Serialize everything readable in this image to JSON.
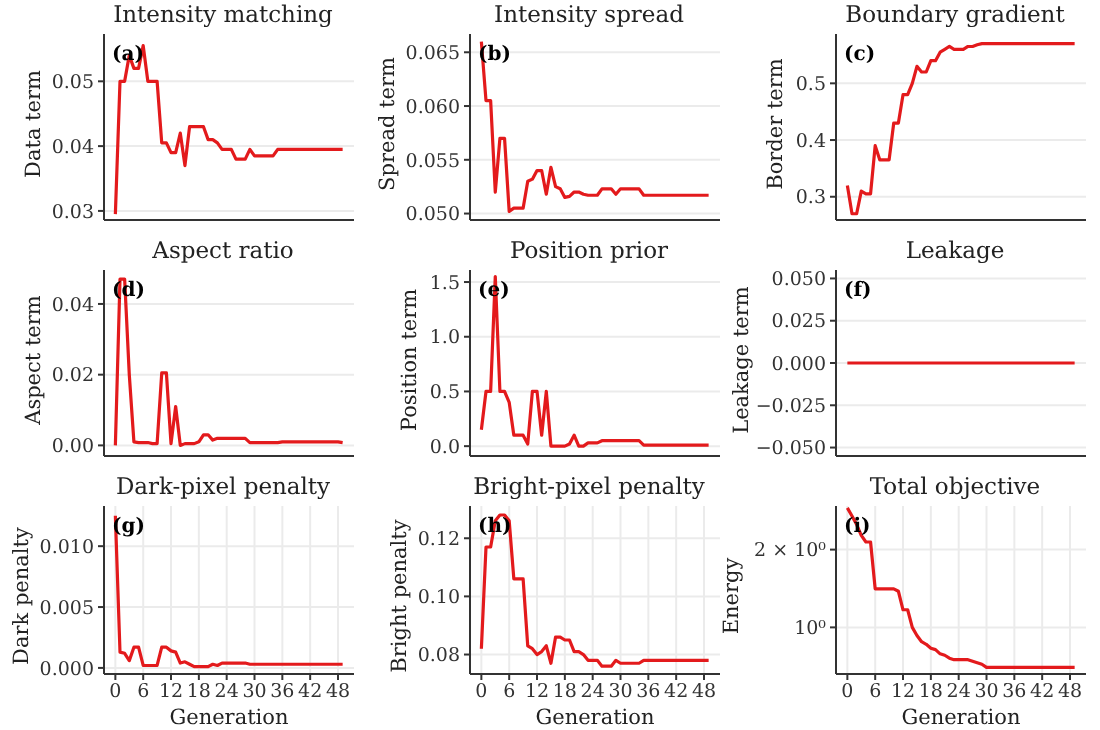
{
  "chart_data": [
    {
      "type": "line",
      "title": "Intensity matching",
      "ylabel": "Data term",
      "annotations": [
        "(a)"
      ],
      "tick_labels": "y",
      "grid": true,
      "xlim": [
        -2.45,
        51.45
      ],
      "xticks": [
        0,
        6,
        12,
        18,
        24,
        30,
        36,
        42,
        48
      ],
      "ylim": [
        0.0286,
        0.0573
      ],
      "yticks": [
        0.03,
        0.04,
        0.05
      ],
      "x": [
        0,
        1,
        2,
        3,
        4,
        5,
        6,
        7,
        8,
        9,
        10,
        11,
        12,
        13,
        14,
        15,
        16,
        17,
        18,
        19,
        20,
        21,
        22,
        23,
        24,
        25,
        26,
        27,
        28,
        29,
        30,
        31,
        32,
        33,
        34,
        35,
        36,
        37,
        38,
        39,
        40,
        41,
        42,
        43,
        44,
        45,
        46,
        47,
        48,
        49
      ],
      "series": [
        {
          "color": "#e31a1c",
          "values": [
            0.0295,
            0.05,
            0.05,
            0.054,
            0.052,
            0.052,
            0.0555,
            0.05,
            0.05,
            0.05,
            0.0405,
            0.0405,
            0.039,
            0.039,
            0.042,
            0.037,
            0.043,
            0.043,
            0.043,
            0.043,
            0.041,
            0.041,
            0.0405,
            0.0395,
            0.0395,
            0.0395,
            0.038,
            0.038,
            0.038,
            0.0395,
            0.0385,
            0.0385,
            0.0385,
            0.0385,
            0.0385,
            0.0395,
            0.0395,
            0.0395,
            0.0395,
            0.0395,
            0.0395,
            0.0395,
            0.0395,
            0.0395,
            0.0395,
            0.0395,
            0.0395,
            0.0395,
            0.0395,
            0.0395
          ]
        }
      ]
    },
    {
      "type": "line",
      "title": "Intensity spread",
      "ylabel": "Spread term",
      "annotations": [
        "(b)"
      ],
      "tick_labels": "y",
      "grid": true,
      "xlim": [
        -2.45,
        51.45
      ],
      "xticks": [
        0,
        6,
        12,
        18,
        24,
        30,
        36,
        42,
        48
      ],
      "ylim": [
        0.0494,
        0.0667
      ],
      "yticks": [
        {
          "value": 0.05,
          "label": "0.050"
        },
        0.055,
        {
          "value": 0.06,
          "label": "0.060"
        },
        0.065
      ],
      "x": [
        0,
        1,
        2,
        3,
        4,
        5,
        6,
        7,
        8,
        9,
        10,
        11,
        12,
        13,
        14,
        15,
        16,
        17,
        18,
        19,
        20,
        21,
        22,
        23,
        24,
        25,
        26,
        27,
        28,
        29,
        30,
        31,
        32,
        33,
        34,
        35,
        36,
        37,
        38,
        39,
        40,
        41,
        42,
        43,
        44,
        45,
        46,
        47,
        48,
        49
      ],
      "series": [
        {
          "color": "#e31a1c",
          "values": [
            0.066,
            0.0605,
            0.0605,
            0.052,
            0.057,
            0.057,
            0.0502,
            0.0505,
            0.0505,
            0.0505,
            0.053,
            0.0532,
            0.054,
            0.054,
            0.0518,
            0.0543,
            0.0525,
            0.0523,
            0.0515,
            0.0516,
            0.052,
            0.052,
            0.0518,
            0.0517,
            0.0517,
            0.0517,
            0.0523,
            0.0523,
            0.0523,
            0.0518,
            0.0523,
            0.0523,
            0.0523,
            0.0523,
            0.0523,
            0.0517,
            0.0517,
            0.0517,
            0.0517,
            0.0517,
            0.0517,
            0.0517,
            0.0517,
            0.0517,
            0.0517,
            0.0517,
            0.0517,
            0.0517,
            0.0517,
            0.0517
          ]
        }
      ]
    },
    {
      "type": "line",
      "title": "Boundary gradient",
      "ylabel": "Border term",
      "annotations": [
        "(c)"
      ],
      "tick_labels": "y",
      "grid": true,
      "xlim": [
        -2.45,
        51.45
      ],
      "xticks": [
        0,
        6,
        12,
        18,
        24,
        30,
        36,
        42,
        48
      ],
      "ylim": [
        0.259,
        0.587
      ],
      "yticks": [
        0.3,
        0.4,
        0.5
      ],
      "x": [
        0,
        1,
        2,
        3,
        4,
        5,
        6,
        7,
        8,
        9,
        10,
        11,
        12,
        13,
        14,
        15,
        16,
        17,
        18,
        19,
        20,
        21,
        22,
        23,
        24,
        25,
        26,
        27,
        28,
        29,
        30,
        31,
        32,
        33,
        34,
        35,
        36,
        37,
        38,
        39,
        40,
        41,
        42,
        43,
        44,
        45,
        46,
        47,
        48,
        49
      ],
      "series": [
        {
          "color": "#e31a1c",
          "values": [
            0.32,
            0.27,
            0.27,
            0.31,
            0.305,
            0.305,
            0.39,
            0.365,
            0.365,
            0.365,
            0.43,
            0.43,
            0.48,
            0.48,
            0.5,
            0.53,
            0.52,
            0.52,
            0.54,
            0.54,
            0.555,
            0.56,
            0.565,
            0.56,
            0.56,
            0.56,
            0.565,
            0.565,
            0.568,
            0.57,
            0.57,
            0.57,
            0.57,
            0.57,
            0.57,
            0.57,
            0.57,
            0.57,
            0.57,
            0.57,
            0.57,
            0.57,
            0.57,
            0.57,
            0.57,
            0.57,
            0.57,
            0.57,
            0.57,
            0.57
          ]
        }
      ]
    },
    {
      "type": "line",
      "title": "Aspect ratio",
      "ylabel": "Aspect term",
      "annotations": [
        "(d)"
      ],
      "tick_labels": "y",
      "grid": true,
      "xlim": [
        -2.45,
        51.45
      ],
      "xticks": [
        0,
        6,
        12,
        18,
        24,
        30,
        36,
        42,
        48
      ],
      "ylim": [
        -0.003,
        0.0496
      ],
      "yticks": [
        {
          "value": 0,
          "label": "0.00"
        },
        0.02,
        0.04
      ],
      "x": [
        0,
        1,
        2,
        3,
        4,
        5,
        6,
        7,
        8,
        9,
        10,
        11,
        12,
        13,
        14,
        15,
        16,
        17,
        18,
        19,
        20,
        21,
        22,
        23,
        24,
        25,
        26,
        27,
        28,
        29,
        30,
        31,
        32,
        33,
        34,
        35,
        36,
        37,
        38,
        39,
        40,
        41,
        42,
        43,
        44,
        45,
        46,
        47,
        48,
        49
      ],
      "series": [
        {
          "color": "#e31a1c",
          "values": [
            0,
            0.047,
            0.047,
            0.02,
            0.001,
            0.0008,
            0.0008,
            0.0008,
            0.0005,
            0.0005,
            0.0205,
            0.0205,
            0.0005,
            0.011,
            0,
            0.0005,
            0.0005,
            0.0005,
            0.001,
            0.003,
            0.003,
            0.0015,
            0.002,
            0.002,
            0.002,
            0.002,
            0.002,
            0.002,
            0.002,
            0.0008,
            0.0008,
            0.0008,
            0.0008,
            0.0008,
            0.0008,
            0.0008,
            0.001,
            0.001,
            0.001,
            0.001,
            0.001,
            0.001,
            0.001,
            0.001,
            0.001,
            0.001,
            0.001,
            0.001,
            0.001,
            0.0008
          ]
        }
      ]
    },
    {
      "type": "line",
      "title": "Position prior",
      "ylabel": "Position term",
      "annotations": [
        "(e)"
      ],
      "tick_labels": "y",
      "grid": true,
      "xlim": [
        -2.45,
        51.45
      ],
      "xticks": [
        0,
        6,
        12,
        18,
        24,
        30,
        36,
        42,
        48
      ],
      "ylim": [
        -0.09,
        1.61
      ],
      "yticks": [
        {
          "value": 0,
          "label": "0.0"
        },
        0.5,
        {
          "value": 1,
          "label": "1.0"
        },
        1.5
      ],
      "x": [
        0,
        1,
        2,
        3,
        4,
        5,
        6,
        7,
        8,
        9,
        10,
        11,
        12,
        13,
        14,
        15,
        16,
        17,
        18,
        19,
        20,
        21,
        22,
        23,
        24,
        25,
        26,
        27,
        28,
        29,
        30,
        31,
        32,
        33,
        34,
        35,
        36,
        37,
        38,
        39,
        40,
        41,
        42,
        43,
        44,
        45,
        46,
        47,
        48,
        49
      ],
      "series": [
        {
          "color": "#e31a1c",
          "values": [
            0.15,
            0.5,
            0.5,
            1.55,
            0.5,
            0.5,
            0.4,
            0.1,
            0.1,
            0.1,
            0.02,
            0.5,
            0.5,
            0.1,
            0.5,
            0,
            0,
            0,
            0,
            0.02,
            0.1,
            0,
            0,
            0.03,
            0.03,
            0.03,
            0.05,
            0.05,
            0.05,
            0.05,
            0.05,
            0.05,
            0.05,
            0.05,
            0.05,
            0.01,
            0.01,
            0.01,
            0.01,
            0.01,
            0.01,
            0.01,
            0.01,
            0.01,
            0.01,
            0.01,
            0.01,
            0.01,
            0.01,
            0.01
          ]
        }
      ]
    },
    {
      "type": "line",
      "title": "Leakage",
      "ylabel": "Leakage term",
      "annotations": [
        "(f)"
      ],
      "tick_labels": "y",
      "grid": true,
      "xlim": [
        -2.45,
        51.45
      ],
      "xticks": [
        0,
        6,
        12,
        18,
        24,
        30,
        36,
        42,
        48
      ],
      "ylim": [
        -0.055,
        0.055
      ],
      "yticks": [
        {
          "value": -0.05,
          "label": "−0.050"
        },
        {
          "value": -0.025,
          "label": "−0.025"
        },
        {
          "value": 0,
          "label": "0.000"
        },
        {
          "value": 0.025,
          "label": "0.025"
        },
        {
          "value": 0.05,
          "label": "0.050"
        }
      ],
      "x": [
        0,
        1,
        2,
        3,
        4,
        5,
        6,
        7,
        8,
        9,
        10,
        11,
        12,
        13,
        14,
        15,
        16,
        17,
        18,
        19,
        20,
        21,
        22,
        23,
        24,
        25,
        26,
        27,
        28,
        29,
        30,
        31,
        32,
        33,
        34,
        35,
        36,
        37,
        38,
        39,
        40,
        41,
        42,
        43,
        44,
        45,
        46,
        47,
        48,
        49
      ],
      "series": [
        {
          "color": "#e31a1c",
          "values": [
            0,
            0,
            0,
            0,
            0,
            0,
            0,
            0,
            0,
            0,
            0,
            0,
            0,
            0,
            0,
            0,
            0,
            0,
            0,
            0,
            0,
            0,
            0,
            0,
            0,
            0,
            0,
            0,
            0,
            0,
            0,
            0,
            0,
            0,
            0,
            0,
            0,
            0,
            0,
            0,
            0,
            0,
            0,
            0,
            0,
            0,
            0,
            0,
            0,
            0
          ]
        }
      ]
    },
    {
      "type": "line",
      "title": "Dark-pixel penalty",
      "xlabel": "Generation",
      "ylabel": "Dark penalty",
      "annotations": [
        "(g)"
      ],
      "grid": true,
      "xlim": [
        -2.45,
        51.45
      ],
      "xticks": [
        0,
        6,
        12,
        18,
        24,
        30,
        36,
        42,
        48
      ],
      "ylim": [
        -0.0005,
        0.0133
      ],
      "yticks": [
        {
          "value": 0,
          "label": "0.000"
        },
        0.005,
        {
          "value": 0.01,
          "label": "0.010"
        }
      ],
      "x": [
        0,
        1,
        2,
        3,
        4,
        5,
        6,
        7,
        8,
        9,
        10,
        11,
        12,
        13,
        14,
        15,
        16,
        17,
        18,
        19,
        20,
        21,
        22,
        23,
        24,
        25,
        26,
        27,
        28,
        29,
        30,
        31,
        32,
        33,
        34,
        35,
        36,
        37,
        38,
        39,
        40,
        41,
        42,
        43,
        44,
        45,
        46,
        47,
        48,
        49
      ],
      "series": [
        {
          "color": "#e31a1c",
          "values": [
            0.0125,
            0.0013,
            0.0012,
            0.0006,
            0.0017,
            0.0017,
            0.0002,
            0.0002,
            0.0002,
            0.0002,
            0.0017,
            0.0017,
            0.0014,
            0.0013,
            0.0004,
            0.0005,
            0.0003,
            0.0001,
            0.0001,
            0.0001,
            0.0001,
            0.0003,
            0.0002,
            0.0004,
            0.0004,
            0.0004,
            0.0004,
            0.0004,
            0.0004,
            0.0003,
            0.0003,
            0.0003,
            0.0003,
            0.0003,
            0.0003,
            0.0003,
            0.0003,
            0.0003,
            0.0003,
            0.0003,
            0.0003,
            0.0003,
            0.0003,
            0.0003,
            0.0003,
            0.0003,
            0.0003,
            0.0003,
            0.0003,
            0.0003
          ]
        }
      ]
    },
    {
      "type": "line",
      "title": "Bright-pixel penalty",
      "xlabel": "Generation",
      "ylabel": "Bright penalty",
      "annotations": [
        "(h)"
      ],
      "grid": true,
      "xlim": [
        -2.45,
        51.45
      ],
      "xticks": [
        0,
        6,
        12,
        18,
        24,
        30,
        36,
        42,
        48
      ],
      "ylim": [
        0.0733,
        0.1311
      ],
      "yticks": [
        0.08,
        {
          "value": 0.1,
          "label": "0.10"
        },
        0.12
      ],
      "x": [
        0,
        1,
        2,
        3,
        4,
        5,
        6,
        7,
        8,
        9,
        10,
        11,
        12,
        13,
        14,
        15,
        16,
        17,
        18,
        19,
        20,
        21,
        22,
        23,
        24,
        25,
        26,
        27,
        28,
        29,
        30,
        31,
        32,
        33,
        34,
        35,
        36,
        37,
        38,
        39,
        40,
        41,
        42,
        43,
        44,
        45,
        46,
        47,
        48,
        49
      ],
      "series": [
        {
          "color": "#e31a1c",
          "values": [
            0.082,
            0.117,
            0.117,
            0.126,
            0.128,
            0.128,
            0.126,
            0.106,
            0.106,
            0.106,
            0.083,
            0.082,
            0.08,
            0.081,
            0.083,
            0.077,
            0.086,
            0.086,
            0.085,
            0.085,
            0.081,
            0.081,
            0.08,
            0.078,
            0.078,
            0.078,
            0.076,
            0.076,
            0.076,
            0.078,
            0.077,
            0.077,
            0.077,
            0.077,
            0.077,
            0.078,
            0.078,
            0.078,
            0.078,
            0.078,
            0.078,
            0.078,
            0.078,
            0.078,
            0.078,
            0.078,
            0.078,
            0.078,
            0.078,
            0.078
          ]
        }
      ]
    },
    {
      "type": "line",
      "title": "Total objective",
      "xlabel": "Generation",
      "ylabel": "Energy",
      "annotations": [
        "(i)"
      ],
      "grid": true,
      "log": true,
      "xlim": [
        -2.45,
        51.45
      ],
      "xticks": [
        0,
        6,
        12,
        18,
        24,
        30,
        36,
        42,
        48
      ],
      "ylim": [
        0.66,
        2.95
      ],
      "yticks": [
        {
          "value": 1,
          "label": "10⁰"
        },
        {
          "value": 2,
          "label": "2 × 10⁰"
        }
      ],
      "x": [
        0,
        1,
        2,
        3,
        4,
        5,
        6,
        7,
        8,
        9,
        10,
        11,
        12,
        13,
        14,
        15,
        16,
        17,
        18,
        19,
        20,
        21,
        22,
        23,
        24,
        25,
        26,
        27,
        28,
        29,
        30,
        31,
        32,
        33,
        34,
        35,
        36,
        37,
        38,
        39,
        40,
        41,
        42,
        43,
        44,
        45,
        46,
        47,
        48,
        49
      ],
      "series": [
        {
          "color": "#e31a1c",
          "values": [
            2.9,
            2.7,
            2.5,
            2.27,
            2.14,
            2.14,
            1.41,
            1.41,
            1.41,
            1.41,
            1.41,
            1.38,
            1.17,
            1.17,
            1.0,
            0.93,
            0.88,
            0.86,
            0.83,
            0.82,
            0.79,
            0.78,
            0.76,
            0.75,
            0.75,
            0.75,
            0.75,
            0.74,
            0.73,
            0.72,
            0.7,
            0.7,
            0.7,
            0.7,
            0.7,
            0.7,
            0.7,
            0.7,
            0.7,
            0.7,
            0.7,
            0.7,
            0.7,
            0.7,
            0.7,
            0.7,
            0.7,
            0.7,
            0.7,
            0.7
          ]
        }
      ]
    }
  ]
}
